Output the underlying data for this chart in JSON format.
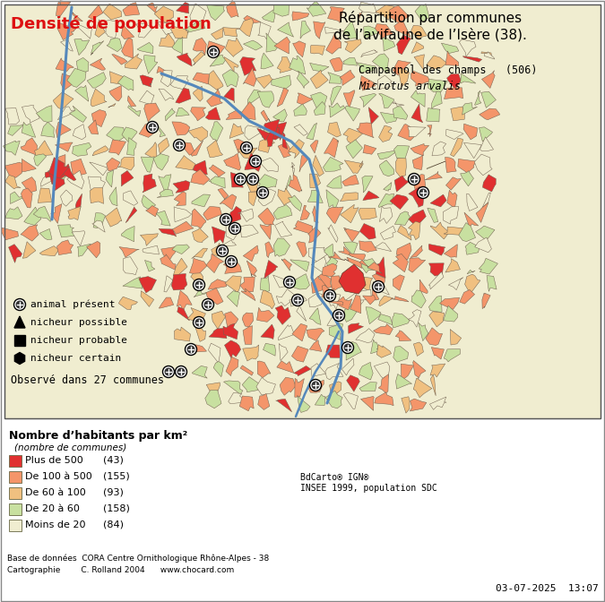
{
  "title_right": "Répartition par communes\nde l’avifaune de l’Isère (38).",
  "title_left": "Densité de population",
  "species_name": "Campagnol des champs   (506)",
  "species_latin": "Microtus arvalis",
  "observed_text": "Observé dans 27 communes",
  "legend_title": "Nombre d’habitants par km²",
  "legend_subtitle": "(nombre de communes)",
  "legend_items": [
    {
      "label": "Plus de 500",
      "count": "(43)",
      "color": "#e03030"
    },
    {
      "label": "De 100 à 500",
      "count": "(155)",
      "color": "#f4956a"
    },
    {
      "label": "De 60 à 100",
      "count": "(93)",
      "color": "#f0c080"
    },
    {
      "label": "De 20 à 60",
      "count": "(158)",
      "color": "#c8e0a0"
    },
    {
      "label": "Moins de 20",
      "count": "(84)",
      "color": "#f0edd0"
    }
  ],
  "symbol_items": [
    {
      "label": "animal présent"
    },
    {
      "label": "nicheur possible"
    },
    {
      "label": "nicheur probable"
    },
    {
      "label": "nicheur certain"
    }
  ],
  "bottom_text1": "Base de données  CORA Centre Ornithologique Rhône-Alpes - 38",
  "bottom_text2": "Cartographie        C. Rolland 2004      www.chocard.com",
  "bottom_right": "03-07-2025  13:07",
  "credit_text": "BdCarto® IGN®\nINSEE 1999, population SDC",
  "bg_color": "#ffffff"
}
